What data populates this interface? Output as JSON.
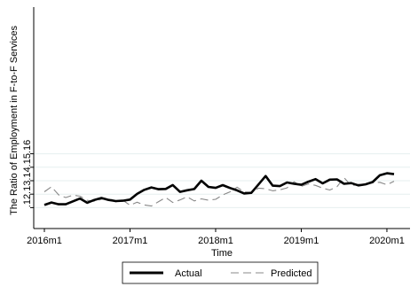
{
  "chart_data": {
    "type": "line",
    "title": "",
    "xlabel": "Time",
    "ylabel": "The Ratio of Employment in F-to-F Services",
    "x_tick_labels": [
      "2016m1",
      "2017m1",
      "2018m1",
      "2019m1",
      "2020m1"
    ],
    "y_tick_labels": [
      ".12",
      ".13",
      ".14",
      ".15",
      ".16"
    ],
    "ylim": [
      0.115,
      0.165
    ],
    "grid": "horizontal",
    "legend_placement": "bottom",
    "x": [
      "2016m1",
      "2016m2",
      "2016m3",
      "2016m4",
      "2016m5",
      "2016m6",
      "2016m7",
      "2016m8",
      "2016m9",
      "2016m10",
      "2016m11",
      "2016m12",
      "2017m1",
      "2017m2",
      "2017m3",
      "2017m4",
      "2017m5",
      "2017m6",
      "2017m7",
      "2017m8",
      "2017m9",
      "2017m10",
      "2017m11",
      "2017m12",
      "2018m1",
      "2018m2",
      "2018m3",
      "2018m4",
      "2018m5",
      "2018m6",
      "2018m7",
      "2018m8",
      "2018m9",
      "2018m10",
      "2018m11",
      "2018m12",
      "2019m1",
      "2019m2",
      "2019m3",
      "2019m4",
      "2019m5",
      "2019m6",
      "2019m7",
      "2019m8",
      "2019m9",
      "2019m10",
      "2019m11",
      "2019m12",
      "2020m1",
      "2020m2"
    ],
    "series": [
      {
        "name": "Actual",
        "color": "#000000",
        "style": "solid",
        "values": [
          0.122,
          0.1238,
          0.1225,
          0.1225,
          0.1247,
          0.1268,
          0.1236,
          0.1257,
          0.1272,
          0.1257,
          0.1249,
          0.1251,
          0.126,
          0.1302,
          0.1332,
          0.135,
          0.1337,
          0.1339,
          0.1368,
          0.1317,
          0.1329,
          0.1338,
          0.14,
          0.1354,
          0.1347,
          0.1367,
          0.1346,
          0.1328,
          0.1305,
          0.131,
          0.1372,
          0.1435,
          0.1363,
          0.136,
          0.1387,
          0.1377,
          0.137,
          0.1393,
          0.1412,
          0.138,
          0.1408,
          0.141,
          0.1377,
          0.1382,
          0.1365,
          0.1373,
          0.139,
          0.144,
          0.1455,
          0.1449
        ]
      },
      {
        "name": "Predicted",
        "color": "#888888",
        "style": "dashed",
        "values": [
          0.1318,
          0.1355,
          0.1295,
          0.1275,
          0.1293,
          0.1285,
          0.1254,
          0.1247,
          0.1262,
          0.127,
          0.1243,
          0.1255,
          0.1218,
          0.124,
          0.122,
          0.1212,
          0.1245,
          0.1275,
          0.1238,
          0.1257,
          0.128,
          0.125,
          0.1265,
          0.1255,
          0.1262,
          0.1295,
          0.1317,
          0.1352,
          0.1317,
          0.1312,
          0.1345,
          0.134,
          0.1325,
          0.1332,
          0.1347,
          0.1392,
          0.1358,
          0.1376,
          0.1365,
          0.1345,
          0.1331,
          0.1355,
          0.1423,
          0.1362,
          0.1373,
          0.137,
          0.1385,
          0.1388,
          0.137,
          0.1396
        ]
      }
    ]
  }
}
